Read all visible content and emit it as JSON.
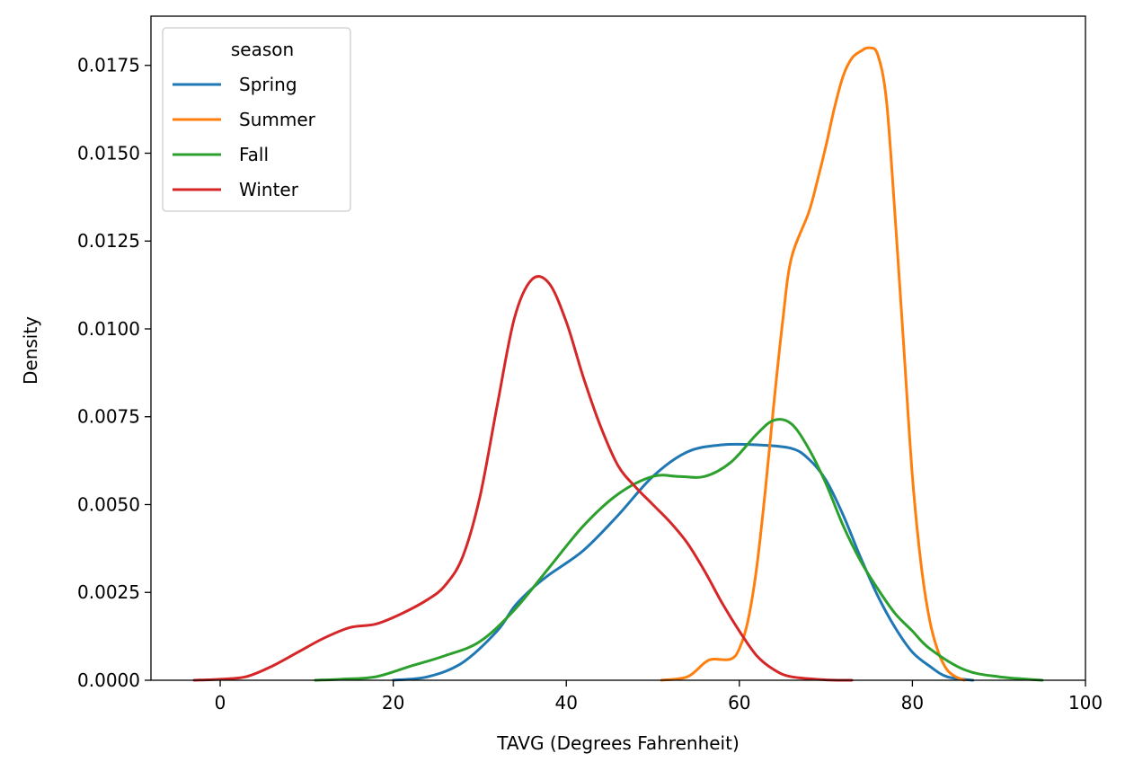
{
  "chart_data": {
    "type": "line",
    "title": "",
    "xlabel": "TAVG (Degrees Fahrenheit)",
    "ylabel": "Density",
    "xlim": [
      -8,
      100
    ],
    "ylim": [
      0,
      0.0189
    ],
    "xticks": [
      0,
      20,
      40,
      60,
      80,
      100
    ],
    "xtick_labels": [
      "0",
      "20",
      "40",
      "60",
      "80",
      "100"
    ],
    "yticks": [
      0,
      0.0025,
      0.005,
      0.0075,
      0.01,
      0.0125,
      0.015,
      0.0175
    ],
    "ytick_labels": [
      "0.0000",
      "0.0025",
      "0.0050",
      "0.0075",
      "0.0100",
      "0.0125",
      "0.0150",
      "0.0175"
    ],
    "grid": false,
    "legend": {
      "title": "season",
      "placement": "top-left"
    },
    "series": [
      {
        "name": "Spring",
        "color": "#1f77b4",
        "points": [
          [
            20,
            0
          ],
          [
            24,
            0.0001
          ],
          [
            28,
            0.0005
          ],
          [
            32,
            0.0014
          ],
          [
            34,
            0.0021
          ],
          [
            36,
            0.0026
          ],
          [
            38,
            0.003
          ],
          [
            42,
            0.0037
          ],
          [
            46,
            0.0047
          ],
          [
            50,
            0.0058
          ],
          [
            54,
            0.0065
          ],
          [
            58,
            0.0067
          ],
          [
            62,
            0.0067
          ],
          [
            66,
            0.0066
          ],
          [
            68,
            0.0063
          ],
          [
            70,
            0.0057
          ],
          [
            72,
            0.0047
          ],
          [
            74,
            0.0035
          ],
          [
            76,
            0.0024
          ],
          [
            78,
            0.0015
          ],
          [
            80,
            0.0008
          ],
          [
            82,
            0.0004
          ],
          [
            84,
            0.0001
          ],
          [
            87,
            0
          ]
        ]
      },
      {
        "name": "Summer",
        "color": "#ff7f0e",
        "points": [
          [
            51,
            0
          ],
          [
            54,
            0.0001
          ],
          [
            56,
            0.0005
          ],
          [
            57,
            0.0006
          ],
          [
            59,
            0.0006
          ],
          [
            60,
            0.0009
          ],
          [
            61,
            0.0017
          ],
          [
            62,
            0.0032
          ],
          [
            63,
            0.0054
          ],
          [
            64,
            0.0079
          ],
          [
            65,
            0.0102
          ],
          [
            66,
            0.012
          ],
          [
            68,
            0.0133
          ],
          [
            69,
            0.0142
          ],
          [
            70,
            0.0152
          ],
          [
            71,
            0.0163
          ],
          [
            72,
            0.0172
          ],
          [
            73,
            0.0177
          ],
          [
            74,
            0.0179
          ],
          [
            75,
            0.018
          ],
          [
            76,
            0.0178
          ],
          [
            77,
            0.0165
          ],
          [
            78,
            0.0132
          ],
          [
            79,
            0.0095
          ],
          [
            80,
            0.0058
          ],
          [
            81,
            0.0033
          ],
          [
            82,
            0.0017
          ],
          [
            83,
            0.0008
          ],
          [
            84,
            0.0003
          ],
          [
            85,
            0.0001
          ],
          [
            86,
            0
          ]
        ]
      },
      {
        "name": "Fall",
        "color": "#2ca02c",
        "points": [
          [
            11,
            0
          ],
          [
            14,
            3e-05
          ],
          [
            18,
            0.0001
          ],
          [
            22,
            0.0004
          ],
          [
            26,
            0.0007
          ],
          [
            30,
            0.0011
          ],
          [
            34,
            0.002
          ],
          [
            38,
            0.0032
          ],
          [
            42,
            0.0044
          ],
          [
            46,
            0.0053
          ],
          [
            50,
            0.0058
          ],
          [
            53,
            0.0058
          ],
          [
            56,
            0.0058
          ],
          [
            59,
            0.0062
          ],
          [
            62,
            0.007
          ],
          [
            64,
            0.0074
          ],
          [
            66,
            0.0073
          ],
          [
            68,
            0.0066
          ],
          [
            70,
            0.0056
          ],
          [
            72,
            0.0044
          ],
          [
            74,
            0.0034
          ],
          [
            76,
            0.0026
          ],
          [
            78,
            0.0019
          ],
          [
            80,
            0.0014
          ],
          [
            82,
            0.0009
          ],
          [
            86,
            0.0003
          ],
          [
            90,
            0.0001
          ],
          [
            95,
            0
          ]
        ]
      },
      {
        "name": "Winter",
        "color": "#d62728",
        "points": [
          [
            -3,
            0
          ],
          [
            0,
            3e-05
          ],
          [
            3,
            0.0001
          ],
          [
            6,
            0.0004
          ],
          [
            9,
            0.0008
          ],
          [
            12,
            0.0012
          ],
          [
            15,
            0.0015
          ],
          [
            18,
            0.0016
          ],
          [
            21,
            0.0019
          ],
          [
            24,
            0.0023
          ],
          [
            26,
            0.0027
          ],
          [
            28,
            0.0035
          ],
          [
            30,
            0.0052
          ],
          [
            32,
            0.0078
          ],
          [
            34,
            0.0103
          ],
          [
            36,
            0.0114
          ],
          [
            38,
            0.0113
          ],
          [
            40,
            0.0102
          ],
          [
            42,
            0.0086
          ],
          [
            44,
            0.0072
          ],
          [
            46,
            0.0061
          ],
          [
            48,
            0.0055
          ],
          [
            50,
            0.005
          ],
          [
            52,
            0.0045
          ],
          [
            54,
            0.0039
          ],
          [
            56,
            0.0031
          ],
          [
            58,
            0.0022
          ],
          [
            60,
            0.0014
          ],
          [
            62,
            0.0007
          ],
          [
            64,
            0.0003
          ],
          [
            66,
            0.0001
          ],
          [
            70,
            1e-05
          ],
          [
            73,
            0
          ]
        ]
      }
    ]
  }
}
